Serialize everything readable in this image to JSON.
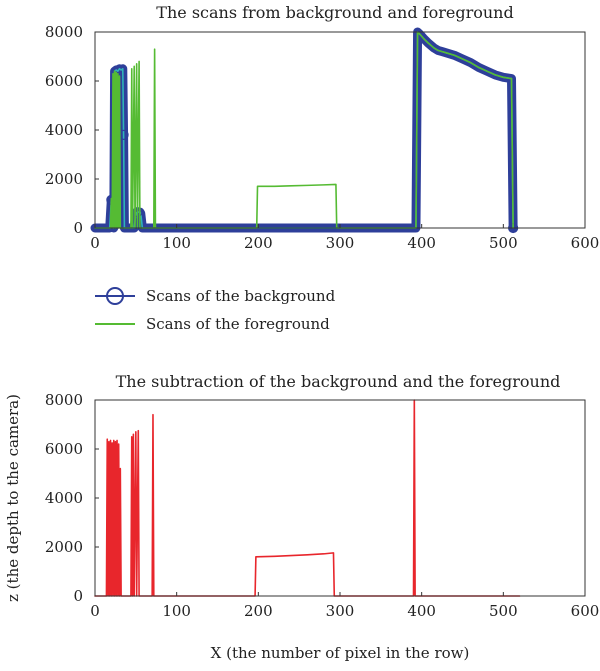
{
  "chart_data": [
    {
      "type": "line",
      "title": "The scans from background and foreground",
      "xlabel": "",
      "ylabel": "",
      "xlim": [
        0,
        600
      ],
      "ylim": [
        0,
        8000
      ],
      "xticks": [
        "0",
        "100",
        "200",
        "300",
        "400",
        "500",
        "600"
      ],
      "yticks": [
        "0",
        "2000",
        "4000",
        "6000",
        "8000"
      ],
      "grid": false,
      "legend_position": "below",
      "colors": {
        "background": "#2e3f9a",
        "foreground": "#55bb33"
      },
      "series": [
        {
          "name": "Scans of the background",
          "marker": "circle",
          "points": [
            [
              0,
              0
            ],
            [
              18,
              0
            ],
            [
              20,
              1150
            ],
            [
              22,
              1100
            ],
            [
              23,
              0
            ],
            [
              24,
              6400
            ],
            [
              26,
              6450
            ],
            [
              28,
              6400
            ],
            [
              30,
              6500
            ],
            [
              32,
              6450
            ],
            [
              34,
              6500
            ],
            [
              35,
              3800
            ],
            [
              36,
              0
            ],
            [
              48,
              0
            ],
            [
              50,
              600
            ],
            [
              52,
              650
            ],
            [
              55,
              650
            ],
            [
              56,
              600
            ],
            [
              58,
              0
            ],
            [
              100,
              0
            ],
            [
              200,
              0
            ],
            [
              300,
              0
            ],
            [
              393,
              0
            ],
            [
              395,
              8000
            ],
            [
              398,
              7900
            ],
            [
              402,
              7750
            ],
            [
              408,
              7550
            ],
            [
              415,
              7350
            ],
            [
              420,
              7250
            ],
            [
              425,
              7200
            ],
            [
              430,
              7150
            ],
            [
              440,
              7050
            ],
            [
              450,
              6900
            ],
            [
              460,
              6750
            ],
            [
              470,
              6550
            ],
            [
              480,
              6400
            ],
            [
              490,
              6250
            ],
            [
              500,
              6150
            ],
            [
              510,
              6100
            ],
            [
              512,
              0
            ]
          ]
        },
        {
          "name": "Scans of the foreground",
          "points": [
            [
              0,
              0
            ],
            [
              19,
              0
            ],
            [
              20,
              1200
            ],
            [
              21,
              0
            ],
            [
              22,
              6300
            ],
            [
              23,
              0
            ],
            [
              24,
              6400
            ],
            [
              25,
              0
            ],
            [
              26,
              6350
            ],
            [
              27,
              0
            ],
            [
              28,
              6300
            ],
            [
              29,
              0
            ],
            [
              30,
              6200
            ],
            [
              31,
              0
            ],
            [
              44,
              0
            ],
            [
              45,
              6500
            ],
            [
              46,
              0
            ],
            [
              48,
              6600
            ],
            [
              49,
              0
            ],
            [
              51,
              6700
            ],
            [
              52,
              0
            ],
            [
              54,
              6800
            ],
            [
              55,
              0
            ],
            [
              72,
              0
            ],
            [
              73,
              7300
            ],
            [
              74,
              0
            ],
            [
              198,
              0
            ],
            [
              199,
              1700
            ],
            [
              220,
              1700
            ],
            [
              240,
              1720
            ],
            [
              260,
              1740
            ],
            [
              280,
              1760
            ],
            [
              295,
              1780
            ],
            [
              296,
              0
            ],
            [
              393,
              0
            ],
            [
              395,
              8000
            ],
            [
              398,
              7900
            ],
            [
              402,
              7750
            ],
            [
              408,
              7550
            ],
            [
              415,
              7350
            ],
            [
              420,
              7250
            ],
            [
              425,
              7200
            ],
            [
              430,
              7150
            ],
            [
              440,
              7050
            ],
            [
              450,
              6900
            ],
            [
              460,
              6750
            ],
            [
              470,
              6550
            ],
            [
              480,
              6400
            ],
            [
              490,
              6250
            ],
            [
              500,
              6150
            ],
            [
              510,
              6100
            ],
            [
              512,
              0
            ]
          ]
        }
      ],
      "legend": [
        {
          "label": "Scans of the background"
        },
        {
          "label": "Scans of the foreground"
        }
      ]
    },
    {
      "type": "line",
      "title": "The subtraction of the background and the foreground",
      "xlabel": "X (the number of pixel in the row)",
      "ylabel": "z (the depth to the camera)",
      "xlim": [
        0,
        600
      ],
      "ylim": [
        0,
        8000
      ],
      "xticks": [
        "0",
        "100",
        "200",
        "300",
        "400",
        "500",
        "600"
      ],
      "yticks": [
        "0",
        "2000",
        "4000",
        "6000",
        "8000"
      ],
      "grid": false,
      "colors": {
        "difference": "#e8262c"
      },
      "series": [
        {
          "points": [
            [
              0,
              0
            ],
            [
              14,
              0
            ],
            [
              15,
              6400
            ],
            [
              16,
              0
            ],
            [
              17,
              6300
            ],
            [
              18,
              0
            ],
            [
              19,
              6350
            ],
            [
              20,
              0
            ],
            [
              21,
              6250
            ],
            [
              22,
              0
            ],
            [
              23,
              6350
            ],
            [
              24,
              0
            ],
            [
              25,
              6300
            ],
            [
              26,
              0
            ],
            [
              27,
              6350
            ],
            [
              28,
              0
            ],
            [
              29,
              6200
            ],
            [
              30,
              0
            ],
            [
              31,
              5200
            ],
            [
              32,
              0
            ],
            [
              44,
              0
            ],
            [
              45,
              6500
            ],
            [
              46,
              0
            ],
            [
              47,
              6600
            ],
            [
              48,
              0
            ],
            [
              50,
              6700
            ],
            [
              51,
              0
            ],
            [
              53,
              6750
            ],
            [
              54,
              0
            ],
            [
              70,
              0
            ],
            [
              71,
              7400
            ],
            [
              72,
              0
            ],
            [
              196,
              0
            ],
            [
              197,
              1600
            ],
            [
              220,
              1620
            ],
            [
              240,
              1650
            ],
            [
              260,
              1680
            ],
            [
              280,
              1720
            ],
            [
              292,
              1760
            ],
            [
              293,
              0
            ],
            [
              390,
              0
            ],
            [
              391,
              8000
            ],
            [
              392,
              0
            ],
            [
              520,
              0
            ]
          ]
        }
      ]
    }
  ]
}
